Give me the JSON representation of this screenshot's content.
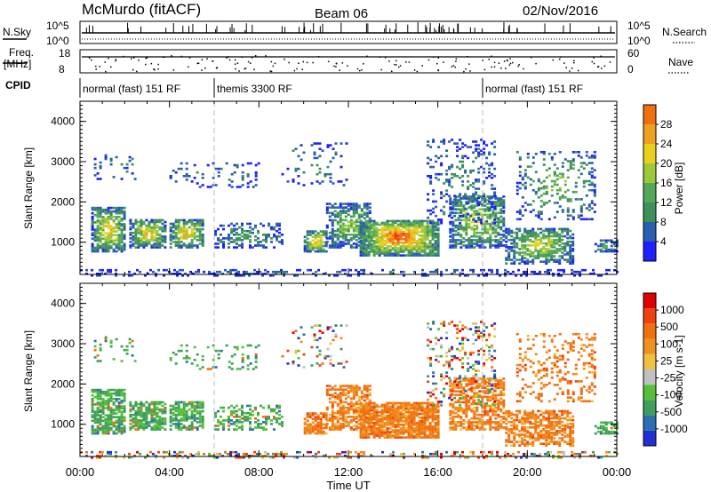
{
  "header": {
    "station": "McMurdo (fitACF)",
    "beam": "Beam 06",
    "date": "02/Nov/2016"
  },
  "top_panels": {
    "nsky_label": "N.Sky",
    "nsearch_label": "N.Search",
    "freq_label_1": "Freq.",
    "freq_label_2": "[MHz]",
    "nave_label": "Nave",
    "cpid_label": "CPID",
    "left_hi": "10^5",
    "left_lo": "10^0",
    "right_hi": "10^5",
    "right_lo": "10^0",
    "freq_hi": "18",
    "freq_lo": "8",
    "nave_hi": "60",
    "nave_lo": "0",
    "cpid_segments": [
      {
        "label": "normal (fast) 151 RF",
        "start_hour": 0,
        "end_hour": 6
      },
      {
        "label": "themis 3300 RF",
        "start_hour": 6,
        "end_hour": 18
      },
      {
        "label": "normal (fast) 151 RF",
        "start_hour": 18,
        "end_hour": 24
      }
    ]
  },
  "colors": {
    "power": [
      "#1f1fff",
      "#2a5fb0",
      "#3f8f5a",
      "#55a85a",
      "#9cc83a",
      "#e8d020",
      "#f0a020",
      "#f07010",
      "#e83010",
      "#d00000"
    ],
    "velocity": [
      "#e00000",
      "#f04010",
      "#f07010",
      "#f09020",
      "#f0c040",
      "#c0c0c0",
      "#55c03a",
      "#3f9f5a",
      "#2a6fb0",
      "#1f2fd0"
    ]
  },
  "chart_data": [
    {
      "type": "heatmap",
      "name": "power",
      "ylabel": "Slant Range [km]",
      "y_ticks": [
        "1000",
        "2000",
        "3000",
        "4000"
      ],
      "ylim": [
        200,
        4500
      ],
      "colorbar_label": "Power [dB]",
      "colorbar_ticks": [
        "4",
        "8",
        "12",
        "16",
        "20",
        "24",
        "28"
      ],
      "colorbar_range": [
        0,
        32
      ]
    },
    {
      "type": "heatmap",
      "name": "velocity",
      "ylabel": "Slant Range [km]",
      "y_ticks": [
        "1000",
        "2000",
        "3000",
        "4000"
      ],
      "ylim": [
        200,
        4500
      ],
      "colorbar_label": "Velocity [m s-1]",
      "colorbar_ticks": [
        "1000",
        "500",
        "100",
        "25",
        "-25",
        "-100",
        "-500",
        "-1000"
      ]
    }
  ],
  "xaxis": {
    "ticks": [
      "00:00",
      "04:00",
      "08:00",
      "12:00",
      "16:00",
      "20:00",
      "00:00"
    ],
    "label": "Time UT",
    "range_hours": [
      0,
      24
    ]
  }
}
